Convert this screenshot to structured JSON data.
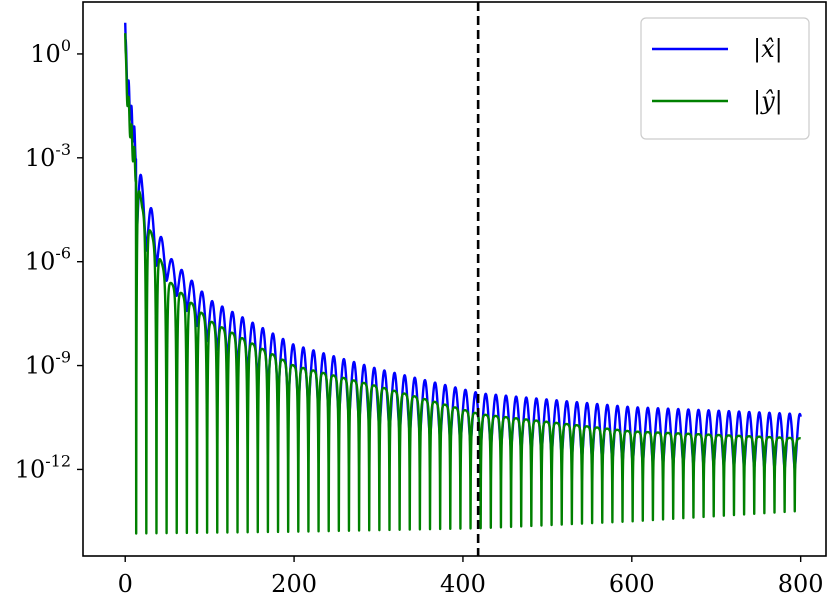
{
  "chart_data": {
    "type": "line",
    "title": "",
    "xlabel": "",
    "ylabel": "",
    "x_range": [
      -50,
      830
    ],
    "x_ticks": [
      0,
      200,
      400,
      600,
      800
    ],
    "x_tick_labels": [
      "0",
      "200",
      "400",
      "600",
      "800"
    ],
    "y_scale": "log",
    "y_range_log10": [
      -14.5,
      1.5
    ],
    "y_ticks_log10": [
      0,
      -3,
      -6,
      -9,
      -12
    ],
    "y_tick_labels": [
      {
        "base": "10",
        "exp": "0"
      },
      {
        "base": "10",
        "exp": "-3"
      },
      {
        "base": "10",
        "exp": "-6"
      },
      {
        "base": "10",
        "exp": "-9"
      },
      {
        "base": "10",
        "exp": "-12"
      }
    ],
    "vertical_marker": {
      "x": 418,
      "style": "dashed",
      "color": "#000000"
    },
    "legend": {
      "placement": "top-right"
    },
    "oscillation": {
      "period": 12,
      "first_dip": 13,
      "x_end": 800
    },
    "series": [
      {
        "name": "|x̂|",
        "color": "#0000ff",
        "start": {
          "x": 0,
          "log10_y": 0.9
        },
        "peaks": [
          [
            5,
            -1.0
          ],
          [
            10,
            -2.2
          ],
          [
            20,
            -3.7
          ],
          [
            50,
            -5.8
          ],
          [
            100,
            -7.1
          ],
          [
            200,
            -8.4
          ],
          [
            300,
            -9.1
          ],
          [
            420,
            -9.8
          ],
          [
            600,
            -10.2
          ],
          [
            800,
            -10.4
          ]
        ],
        "troughs": [
          [
            20,
            -5.5
          ],
          [
            100,
            -8.4
          ],
          [
            200,
            -10.0
          ],
          [
            300,
            -10.8
          ],
          [
            420,
            -11.3
          ],
          [
            600,
            -11.8
          ],
          [
            800,
            -12.0
          ]
        ]
      },
      {
        "name": "|ŷ|",
        "color": "#008000",
        "start": {
          "x": 0,
          "log10_y": 0.6
        },
        "peaks": [
          [
            5,
            -1.5
          ],
          [
            10,
            -2.8
          ],
          [
            20,
            -4.4
          ],
          [
            50,
            -6.5
          ],
          [
            100,
            -7.7
          ],
          [
            200,
            -9.0
          ],
          [
            300,
            -9.6
          ],
          [
            420,
            -10.4
          ],
          [
            600,
            -10.9
          ],
          [
            800,
            -11.1
          ]
        ],
        "troughs": [
          [
            14,
            -13.85
          ],
          [
            200,
            -13.8
          ],
          [
            420,
            -13.7
          ],
          [
            600,
            -13.5
          ],
          [
            800,
            -13.2
          ]
        ]
      }
    ]
  }
}
